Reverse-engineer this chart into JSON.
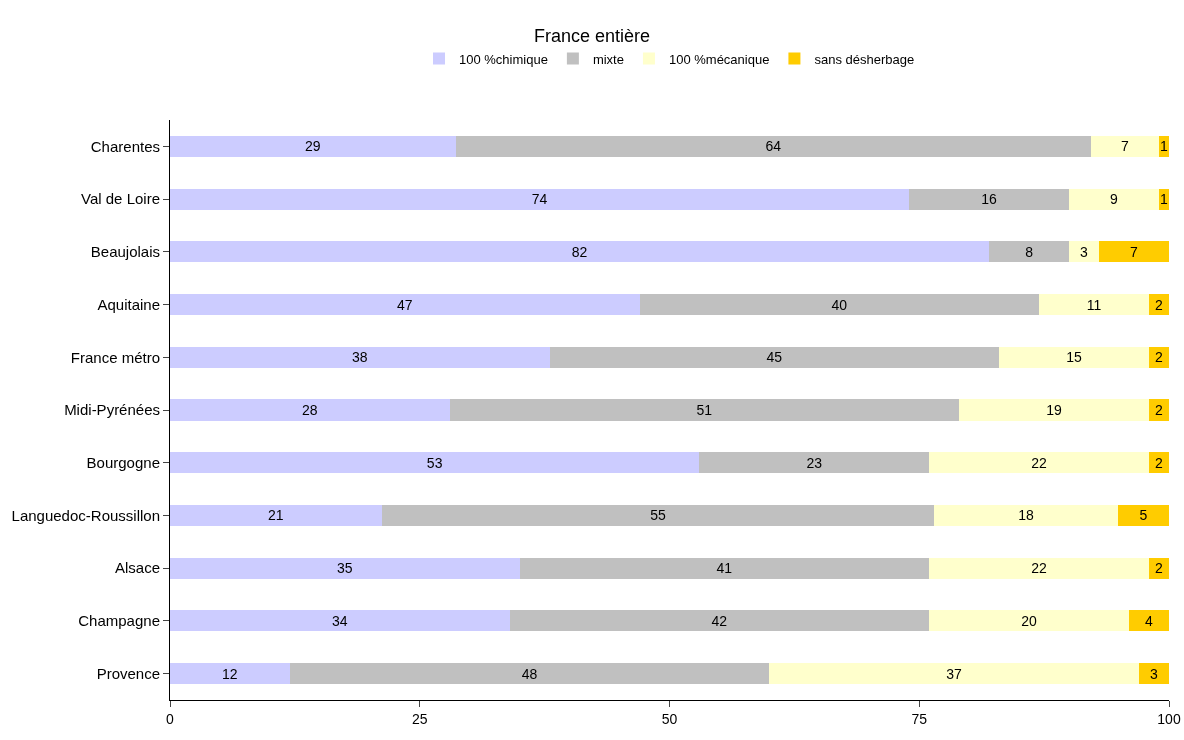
{
  "chart_data": {
    "type": "bar",
    "orientation": "horizontal",
    "stacked": true,
    "title": "France entière",
    "categories": [
      "Charentes",
      "Val de Loire",
      "Beaujolais",
      "Aquitaine",
      "France métro",
      "Midi-Pyrénées",
      "Bourgogne",
      "Languedoc-Roussillon",
      "Alsace",
      "Champagne",
      "Provence"
    ],
    "series": [
      {
        "name": "100 %chimique",
        "color": "#ccccff",
        "values": [
          28.6,
          74,
          82,
          47,
          38,
          28,
          53,
          21.2,
          35,
          34,
          12
        ],
        "value_labels": [
          "29",
          "74",
          "82",
          "47",
          "38",
          "28",
          "53",
          "21",
          "35",
          "34",
          "12"
        ]
      },
      {
        "name": "mixte",
        "color": "#c0c0c0",
        "values": [
          63.6,
          16,
          8,
          40,
          45,
          51,
          23,
          55.3,
          41,
          42,
          48
        ],
        "value_labels": [
          "64",
          "16",
          "8",
          "40",
          "45",
          "51",
          "23",
          "55",
          "41",
          "42",
          "48"
        ]
      },
      {
        "name": "100 %mécanique",
        "color": "#ffffcc",
        "values": [
          6.8,
          9,
          3,
          11,
          15,
          19,
          22,
          18.4,
          22,
          20,
          37
        ],
        "value_labels": [
          "7",
          "9",
          "3",
          "11",
          "15",
          "19",
          "22",
          "18",
          "22",
          "20",
          "37"
        ]
      },
      {
        "name": "sans désherbage",
        "color": "#ffcc00",
        "values": [
          1,
          1,
          7,
          2,
          2,
          2,
          2,
          5.1,
          2,
          4,
          3
        ],
        "value_labels": [
          "1",
          "1",
          "7",
          "2",
          "2",
          "2",
          "2",
          "5",
          "2",
          "4",
          "3"
        ]
      }
    ],
    "xlim": [
      0,
      100
    ],
    "xticks": [
      0,
      25,
      50,
      75,
      100
    ],
    "legend": "top",
    "grid": false
  }
}
